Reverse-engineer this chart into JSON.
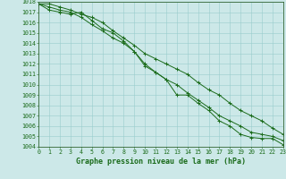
{
  "title": "Graphe pression niveau de la mer (hPa)",
  "background_color": "#cce8e8",
  "grid_color": "#99cccc",
  "line_color": "#1a6b1a",
  "x_hours": [
    0,
    1,
    2,
    3,
    4,
    5,
    6,
    7,
    8,
    9,
    10,
    11,
    12,
    13,
    14,
    15,
    16,
    17,
    18,
    19,
    20,
    21,
    22,
    23
  ],
  "line1": [
    1017.8,
    1017.2,
    1017.0,
    1016.8,
    1017.0,
    1016.2,
    1015.4,
    1015.0,
    1014.2,
    1013.2,
    1011.8,
    1011.2,
    1010.5,
    1009.0,
    1009.0,
    1008.2,
    1007.5,
    1006.5,
    1006.0,
    1005.2,
    1004.9,
    1004.8,
    1004.8,
    1004.2
  ],
  "line2": [
    1017.8,
    1017.5,
    1017.2,
    1017.0,
    1016.5,
    1015.8,
    1015.2,
    1014.5,
    1014.0,
    1013.2,
    1012.0,
    1011.2,
    1010.5,
    1010.0,
    1009.2,
    1008.5,
    1007.8,
    1007.0,
    1006.5,
    1006.0,
    1005.4,
    1005.2,
    1005.0,
    1004.6
  ],
  "line3": [
    1017.8,
    1017.8,
    1017.5,
    1017.2,
    1016.8,
    1016.5,
    1016.0,
    1015.2,
    1014.5,
    1013.8,
    1013.0,
    1012.5,
    1012.0,
    1011.5,
    1011.0,
    1010.2,
    1009.5,
    1009.0,
    1008.2,
    1007.5,
    1007.0,
    1006.5,
    1005.8,
    1005.2
  ],
  "ylim": [
    1004,
    1018
  ],
  "yticks": [
    1004,
    1005,
    1006,
    1007,
    1008,
    1009,
    1010,
    1011,
    1012,
    1013,
    1014,
    1015,
    1016,
    1017,
    1018
  ],
  "title_fontsize": 6.0,
  "tick_fontsize": 4.8
}
